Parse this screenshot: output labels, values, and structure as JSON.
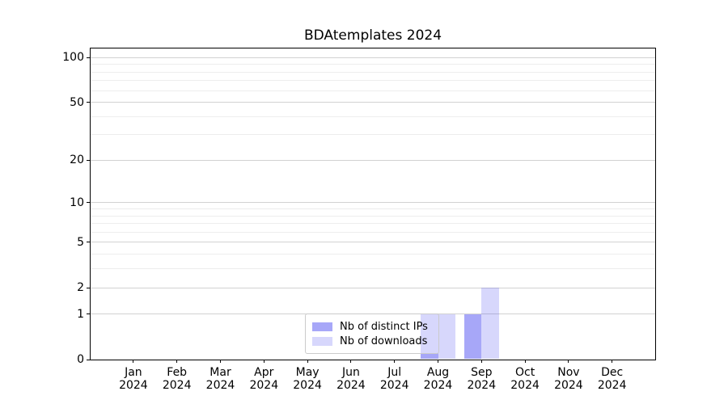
{
  "window": {
    "background": "#ffffff"
  },
  "chart_data": {
    "type": "bar",
    "title": "BDAtemplates 2024",
    "xlabel": "",
    "ylabel": "",
    "year": "2024",
    "categories": [
      "Jan",
      "Feb",
      "Mar",
      "Apr",
      "May",
      "Jun",
      "Jul",
      "Aug",
      "Sep",
      "Oct",
      "Nov",
      "Dec"
    ],
    "series": [
      {
        "name": "Nb of distinct IPs",
        "color": "rgba(34,34,238,0.40)",
        "color_hex_on_white": "#a8a8f1",
        "values": [
          0,
          0,
          0,
          0,
          0,
          0,
          0,
          1,
          1,
          0,
          0,
          0
        ]
      },
      {
        "name": "Nb of downloads",
        "color": "rgba(34,34,238,0.18)",
        "color_hex_on_white": "#d7d7f9",
        "values": [
          0,
          0,
          0,
          0,
          0,
          0,
          0,
          1,
          2,
          0,
          0,
          0
        ]
      }
    ],
    "y_ticks": [
      0,
      1,
      2,
      5,
      10,
      20,
      50,
      100
    ],
    "y_minor_gridlines": [
      3,
      4,
      6,
      7,
      8,
      9,
      30,
      40,
      60,
      70,
      80,
      90
    ],
    "scale": "log10(1+v)",
    "ylim": [
      0,
      115
    ],
    "grid": "horizontal",
    "legend_position": "lower center",
    "colors": {
      "grid_major": "#d2d2d2",
      "grid_minor": "#ededed",
      "axis": "#000000",
      "legend_border": "#cbcbcb"
    }
  }
}
